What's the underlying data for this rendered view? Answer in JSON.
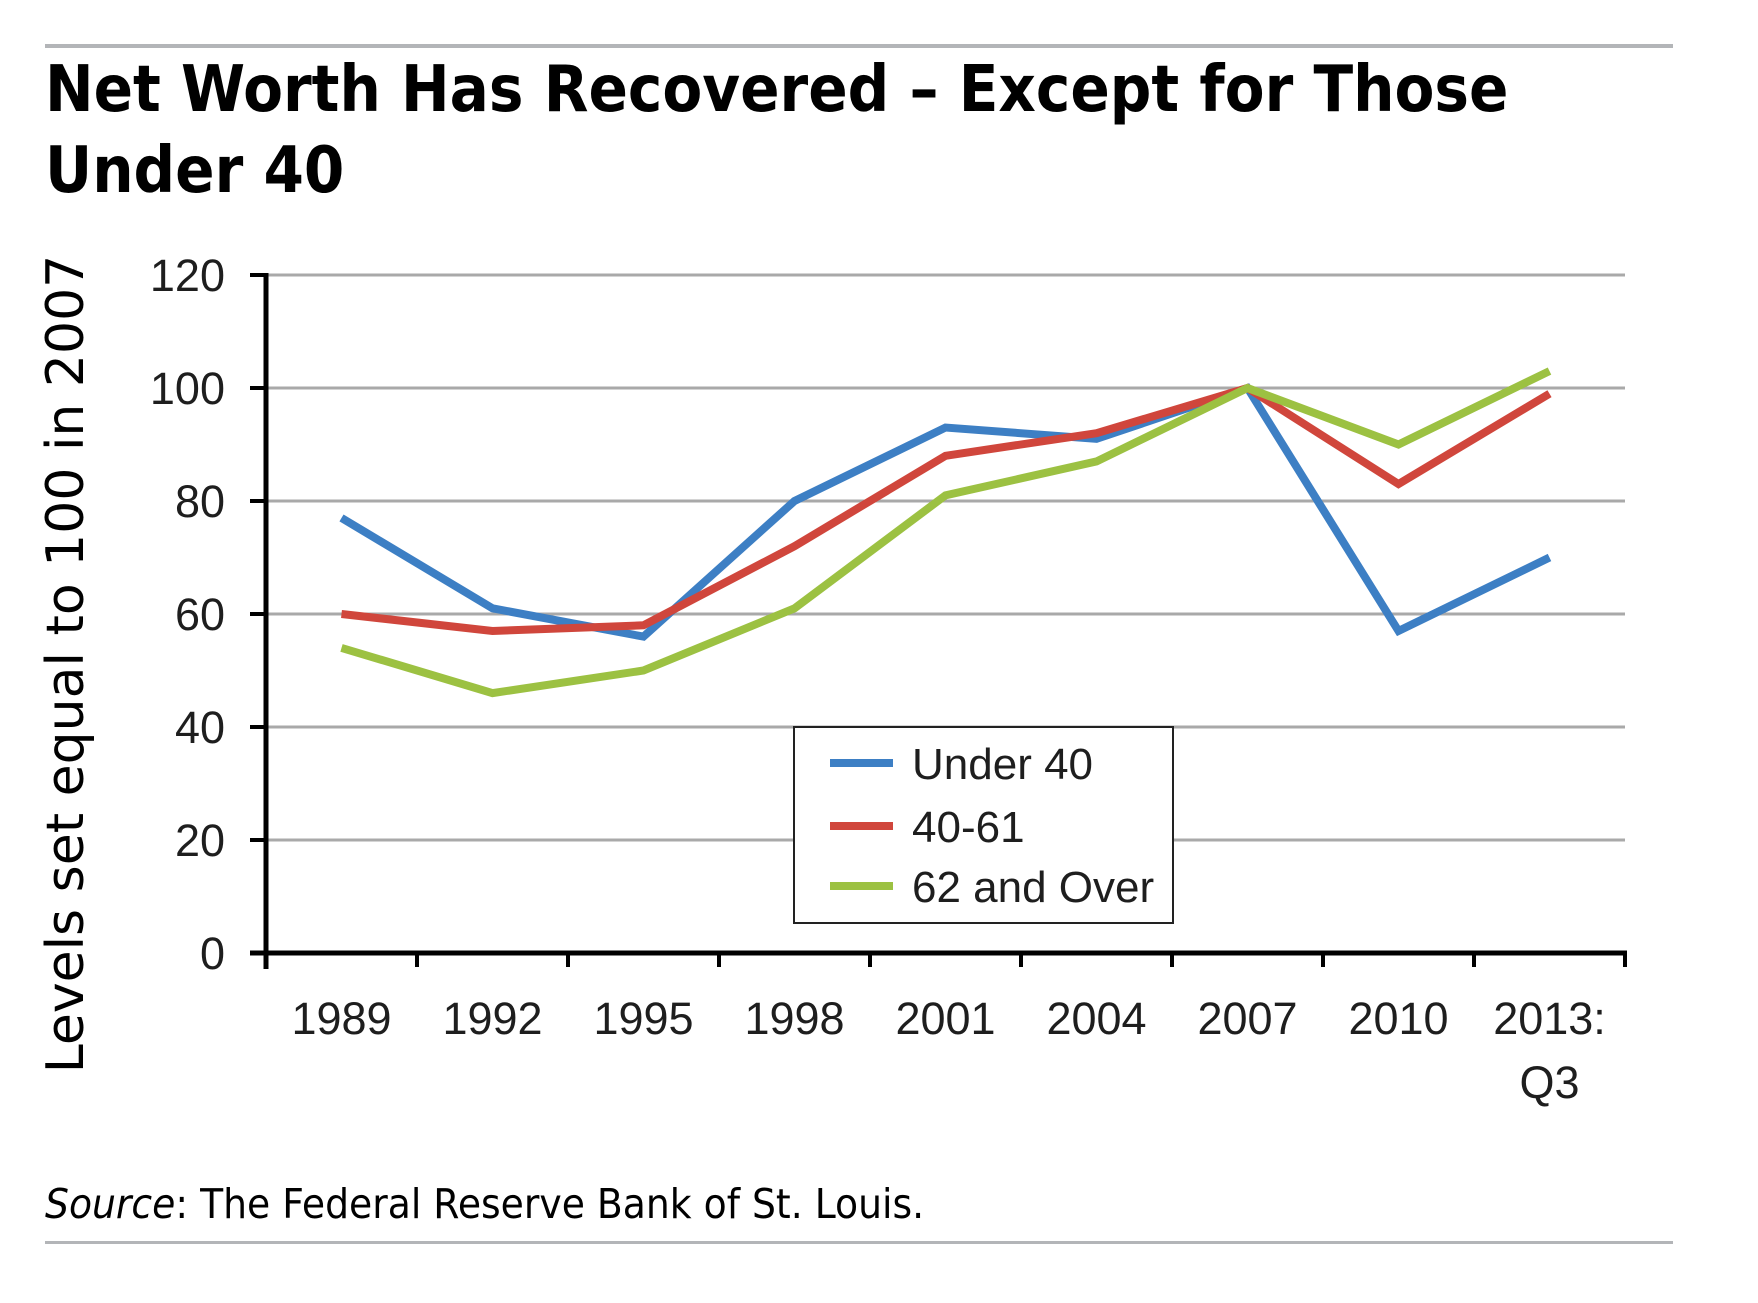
{
  "header": {
    "title_line1": "Net Worth Has Recovered – Except for Those",
    "title_line2": "Under 40"
  },
  "footer": {
    "source_label": "Source",
    "source_text": ": The Federal Reserve Bank of St. Louis."
  },
  "chart_data": {
    "type": "line",
    "title": "Net Worth Has Recovered – Except for Those Under 40",
    "xlabel": "",
    "ylabel": "Levels set equal to 100 in 2007",
    "categories": [
      "1989",
      "1992",
      "1995",
      "1998",
      "2001",
      "2004",
      "2007",
      "2010",
      "2013:\nQ3"
    ],
    "category_lines": [
      [
        "1989"
      ],
      [
        "1992"
      ],
      [
        "1995"
      ],
      [
        "1998"
      ],
      [
        "2001"
      ],
      [
        "2004"
      ],
      [
        "2007"
      ],
      [
        "2010"
      ],
      [
        "2013:",
        "Q3"
      ]
    ],
    "ylim": [
      0,
      120
    ],
    "yticks": [
      0,
      20,
      40,
      60,
      80,
      100,
      120
    ],
    "grid": "horizontal",
    "legend_position": "center-bottom",
    "series": [
      {
        "name": "Under 40",
        "color": "#3d7fc4",
        "values": [
          77,
          61,
          56,
          80,
          93,
          91,
          100,
          57,
          70
        ]
      },
      {
        "name": "40-61",
        "color": "#d0463c",
        "values": [
          60,
          57,
          58,
          72,
          88,
          92,
          100,
          83,
          99
        ]
      },
      {
        "name": "62 and Over",
        "color": "#9cc142",
        "values": [
          54,
          46,
          50,
          61,
          81,
          87,
          100,
          90,
          103
        ]
      }
    ]
  }
}
